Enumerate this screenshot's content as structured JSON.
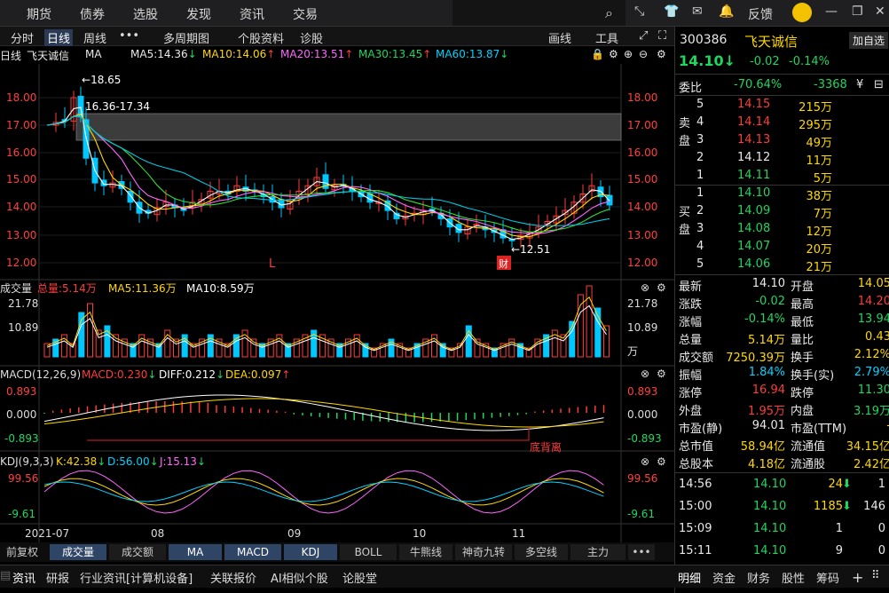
{
  "nav": {
    "items": [
      "期货",
      "债券",
      "选股",
      "发现",
      "资讯",
      "交易"
    ],
    "feedback": "反馈"
  },
  "toolbar": {
    "items": [
      "分时",
      "日线",
      "周线",
      "•••",
      "多周期图",
      "个股资料",
      "诊股"
    ],
    "draw": "画线",
    "tools": "工具"
  },
  "ma_line": {
    "period": "日线",
    "name": "飞天诚信",
    "type": "MA",
    "ma5": "MA5:14.36",
    "ma10": "MA10:14.06",
    "ma20": "MA20:13.51",
    "ma30": "MA30:13.45",
    "ma60": "MA60:13.87"
  },
  "chart_data": {
    "type": "candlestick",
    "price_axis": [
      "18.00",
      "17.00",
      "16.00",
      "15.00",
      "14.00",
      "13.00",
      "12.00"
    ],
    "high_label": "18.65",
    "low_label": "12.51",
    "band_label": "16.36-17.34",
    "marker_L": "L",
    "marker_cai": "财",
    "x_labels": [
      "2021-07",
      "08",
      "09",
      "10",
      "11"
    ],
    "volume": {
      "title": "成交量",
      "total": "总量:5.14万",
      "ma5": "MA5:11.36万",
      "ma10": "MA10:8.59万",
      "axis": [
        "21.78",
        "10.89",
        "万"
      ]
    },
    "macd": {
      "title": "MACD(12,26,9)",
      "macd": "MACD:0.230",
      "diff": "DIFF:0.212",
      "dea": "DEA:0.097",
      "axis": [
        "0.893",
        "0.000",
        "-0.893"
      ],
      "annotation": "底背离"
    },
    "kdj": {
      "title": "KDJ(9,3,3)",
      "k": "K:42.38",
      "d": "D:56.00",
      "j": "J:15.13",
      "axis": [
        "99.56",
        "-9.61"
      ]
    },
    "colors": {
      "up": "#ff3b3b",
      "down": "#00c8ff",
      "ma5": "#ffffff",
      "ma10": "#ffd800",
      "ma20": "#ff66ff",
      "ma30": "#33dd33",
      "ma60": "#00c8e0"
    }
  },
  "indicator_tabs": [
    "前复权",
    "成交量",
    "成交额",
    "MA",
    "MACD",
    "KDJ",
    "BOLL",
    "牛熊线",
    "神奇九转",
    "多空线",
    "主力",
    "•••"
  ],
  "info_tabs": [
    "资讯",
    "研报",
    "行业资讯[计算机设备]",
    "关联报价",
    "AI相似个股",
    "论股堂"
  ],
  "stock": {
    "code": "300386",
    "name": "飞天诚信",
    "add_watch": "加自选",
    "price": "14.10",
    "change": "-0.02",
    "change_pct": "-0.14%",
    "weibi_label": "委比",
    "weibi": "-70.64%",
    "weicha": "-3368",
    "sell_label": "卖盘",
    "buy_label": "买盘",
    "asks": [
      {
        "level": "5",
        "price": "14.15",
        "vol": "215万"
      },
      {
        "level": "4",
        "price": "14.14",
        "vol": "295万"
      },
      {
        "level": "3",
        "price": "14.13",
        "vol": "49万"
      },
      {
        "level": "2",
        "price": "14.12",
        "vol": "11万"
      },
      {
        "level": "1",
        "price": "14.11",
        "vol": "5万"
      }
    ],
    "bids": [
      {
        "level": "1",
        "price": "14.10",
        "vol": "38万"
      },
      {
        "level": "2",
        "price": "14.09",
        "vol": "7万"
      },
      {
        "level": "3",
        "price": "14.08",
        "vol": "12万"
      },
      {
        "level": "4",
        "price": "14.07",
        "vol": "20万"
      },
      {
        "level": "5",
        "price": "14.06",
        "vol": "21万"
      }
    ],
    "stats": [
      [
        "最新",
        "14.10",
        "开盘",
        "14.05"
      ],
      [
        "涨跌",
        "-0.02",
        "最高",
        "14.20"
      ],
      [
        "涨幅",
        "-0.14%",
        "最低",
        "13.94"
      ],
      [
        "总量",
        "5.14万",
        "量比",
        "0.43"
      ],
      [
        "成交额",
        "7250.39万",
        "换手",
        "2.12%"
      ],
      [
        "振幅",
        "1.84%",
        "换手(实)",
        "2.79%"
      ],
      [
        "涨停",
        "16.94",
        "跌停",
        "11.30"
      ],
      [
        "外盘",
        "1.95万",
        "内盘",
        "3.19万"
      ],
      [
        "市盈(静)",
        "94.01",
        "市盈(TTM)",
        "-"
      ],
      [
        "总市值",
        "58.94亿",
        "流通值",
        "34.15亿"
      ],
      [
        "总股本",
        "4.18亿",
        "流通股",
        "2.42亿"
      ]
    ],
    "ticks": [
      [
        "14:56",
        "14.10",
        "24",
        "1"
      ],
      [
        "15:00",
        "14.10",
        "1185",
        "146"
      ],
      [
        "15:09",
        "14.10",
        "1",
        "0"
      ],
      [
        "15:11",
        "14.10",
        "9",
        "0"
      ]
    ],
    "bottom_tabs": [
      "明细",
      "资金",
      "财务",
      "股性",
      "筹码"
    ]
  }
}
